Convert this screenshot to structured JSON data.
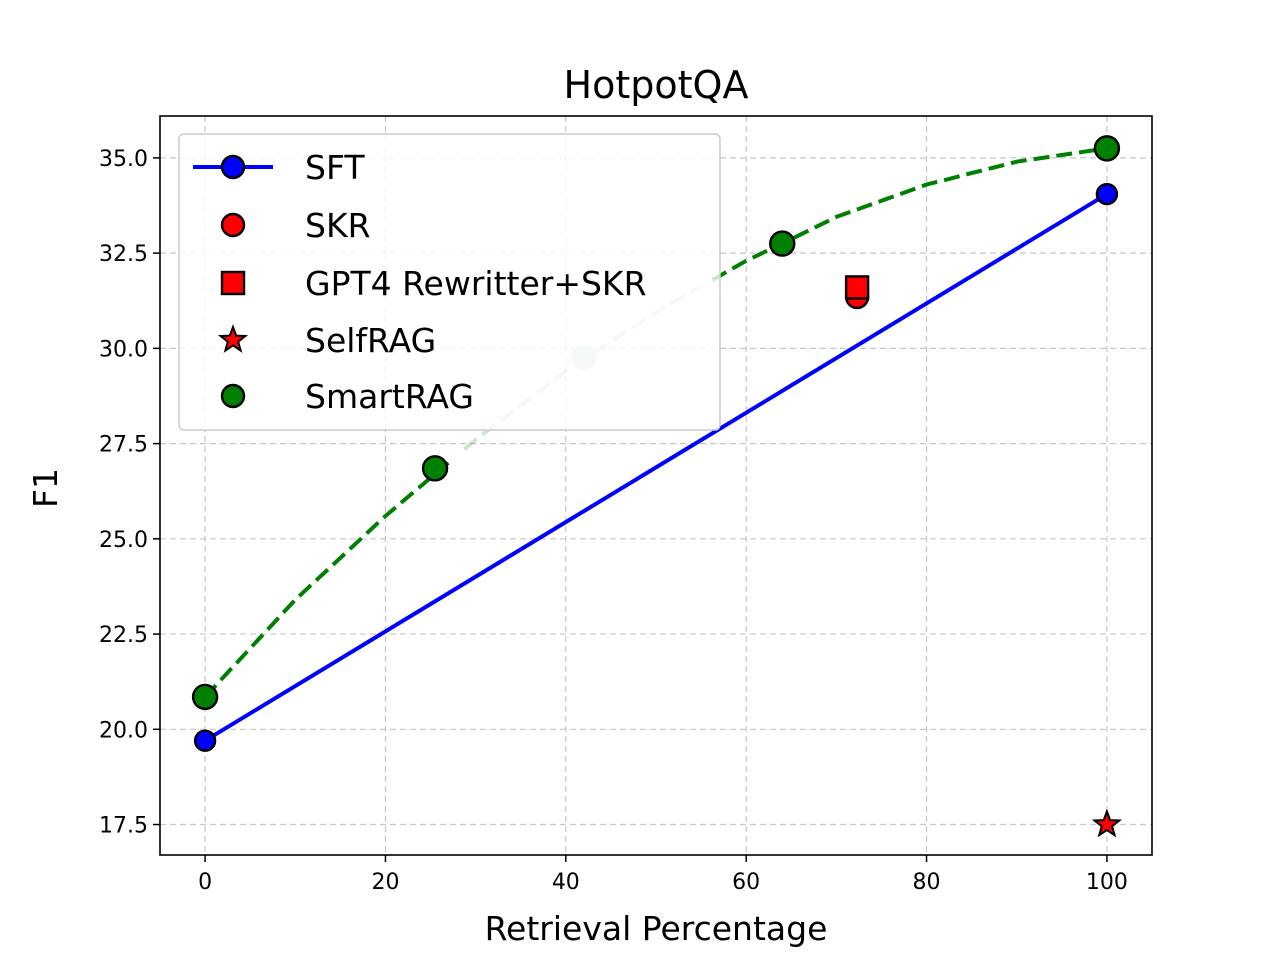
{
  "chart_data": {
    "type": "line",
    "title": "HotpotQA",
    "xlabel": "Retrieval Percentage",
    "ylabel": "F1",
    "xlim": [
      -5,
      105
    ],
    "ylim": [
      16.7,
      36.1
    ],
    "x_ticks": [
      0,
      20,
      40,
      60,
      80,
      100
    ],
    "x_tick_labels": [
      "0",
      "20",
      "40",
      "60",
      "80",
      "100"
    ],
    "y_ticks": [
      17.5,
      20.0,
      22.5,
      25.0,
      27.5,
      30.0,
      32.5,
      35.0
    ],
    "y_tick_labels": [
      "17.5",
      "20.0",
      "22.5",
      "25.0",
      "27.5",
      "30.0",
      "32.5",
      "35.0"
    ],
    "grid": true,
    "legend_position": "top-left",
    "series": [
      {
        "name": "SFT",
        "kind": "line-marker",
        "marker": "circle",
        "color": "#0000ff",
        "x": [
          0,
          100
        ],
        "y": [
          19.7,
          34.05
        ]
      },
      {
        "name": "SKR",
        "kind": "scatter",
        "marker": "circle",
        "color": "#ff0000",
        "x": [
          72.3
        ],
        "y": [
          31.35
        ]
      },
      {
        "name": "GPT4 Rewritter+SKR",
        "kind": "scatter",
        "marker": "square",
        "color": "#ff0000",
        "x": [
          72.3
        ],
        "y": [
          31.6
        ]
      },
      {
        "name": "SelfRAG",
        "kind": "scatter",
        "marker": "star",
        "color": "#ff0000",
        "x": [
          100
        ],
        "y": [
          17.5
        ]
      },
      {
        "name": "SmartRAG",
        "kind": "scatter",
        "marker": "circle",
        "color": "#008000",
        "x": [
          0,
          25.5,
          64,
          100
        ],
        "y": [
          20.85,
          26.85,
          32.75,
          35.25
        ]
      }
    ],
    "trend_curve": {
      "series": "SmartRAG",
      "style": "dashed",
      "color": "#008000",
      "x": [
        0,
        10,
        20,
        30,
        40,
        50,
        60,
        64,
        70,
        80,
        90,
        100
      ],
      "y": [
        20.85,
        23.4,
        25.6,
        27.6,
        29.4,
        30.95,
        32.3,
        32.75,
        33.45,
        34.3,
        34.9,
        35.25
      ],
      "faded_x_range": [
        28,
        56
      ]
    },
    "faded_point": {
      "x": 42,
      "y": 29.75,
      "color": "#cfe6cf"
    }
  }
}
